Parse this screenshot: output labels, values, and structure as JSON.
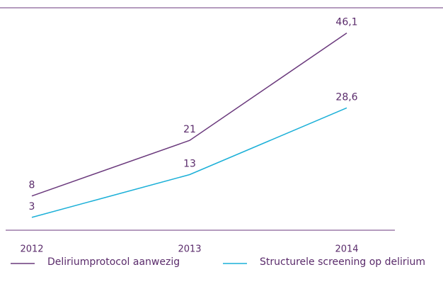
{
  "chart_data": {
    "type": "line",
    "categories": [
      "2012",
      "2013",
      "2014"
    ],
    "series": [
      {
        "name": "Deliriumprotocol aanwezig",
        "color": "#6b3a7d",
        "values": [
          8,
          21,
          46.1
        ],
        "value_labels": [
          "8",
          "21",
          "46,1"
        ]
      },
      {
        "name": "Structurele screening op delirium",
        "color": "#1cb0d8",
        "values": [
          3,
          13,
          28.6
        ],
        "value_labels": [
          "3",
          "13",
          "28,6"
        ]
      }
    ],
    "ylim": [
      0,
      52
    ],
    "grid": false
  }
}
